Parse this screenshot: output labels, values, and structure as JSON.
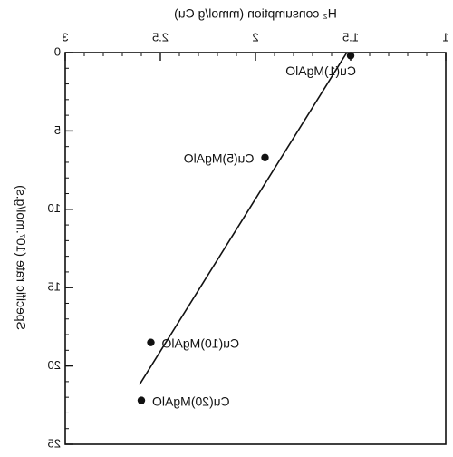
{
  "chart_data": {
    "type": "scatter",
    "title": "",
    "xlabel": "H₂ consumption (mmol/g Cu)",
    "ylabel": "Specific rate (10⁷.mol/g.s)",
    "xlim": [
      1,
      3
    ],
    "ylim": [
      0,
      25
    ],
    "x_reversed": true,
    "y_inverted": true,
    "x_ticks": [
      1,
      1.5,
      2,
      2.5,
      3
    ],
    "x_tick_labels": [
      "1",
      "1.5",
      "2",
      "2.5",
      "3"
    ],
    "y_ticks": [
      0,
      5,
      10,
      15,
      20,
      25
    ],
    "y_tick_labels": [
      "0",
      "5",
      "10",
      "15",
      "20",
      "25"
    ],
    "mirrored_text": true,
    "grid": false,
    "series": [
      {
        "points": [
          {
            "label": "Cu(1)MgAlO",
            "x": 1.5,
            "y": 0.2
          },
          {
            "label": "Cu(5)MgAlO",
            "x": 1.95,
            "y": 6.7
          },
          {
            "label": "Cu(10)MgAlO",
            "x": 2.55,
            "y": 18.5
          },
          {
            "label": "Cu(20)MgAlO",
            "x": 2.6,
            "y": 22.2
          }
        ]
      }
    ],
    "fit_line": {
      "x": [
        1.52,
        2.61
      ],
      "y": [
        0,
        21.2
      ]
    }
  }
}
